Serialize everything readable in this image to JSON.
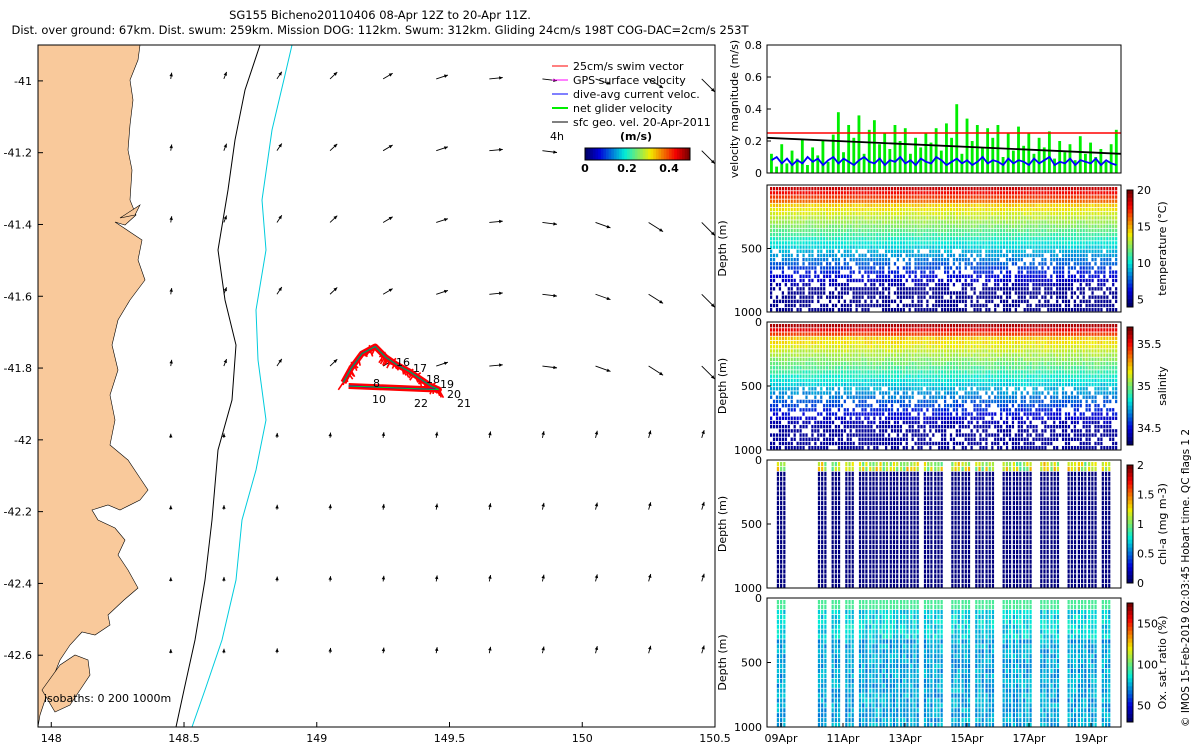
{
  "header": {
    "line1": "SG155 Bicheno20110406 08-Apr 12Z to 20-Apr 11Z.",
    "line2": "Dist. over ground: 67km. Dist. swum: 259km. Mission DOG: 112km. Swum: 312km. Gliding 24cm/s 198T COG-DAC=2cm/s 253T"
  },
  "footer_text": "© IMOS 15-Feb-2019 02:03:45 Hobart time. QC flags 1  2",
  "colors": {
    "land": "#f9c99b",
    "isobath_200": "#000000",
    "isobath_1000": "#00ccdd",
    "swim_vector": "#ff0000",
    "gps_velocity": "#ff00ff",
    "dive_avg_current": "#0000ff",
    "net_glider_velocity": "#00ee00",
    "sfc_geo_vel": "#000000"
  },
  "chart_data": [
    {
      "id": "map",
      "type": "scatter",
      "title": "",
      "xlabel": "",
      "ylabel": "",
      "xlim": [
        147.95,
        150.5
      ],
      "ylim": [
        -42.8,
        -40.9
      ],
      "xticks": [
        148,
        148.5,
        149,
        149.5,
        150,
        150.5
      ],
      "xtick_labels": [
        "148",
        "148.5",
        "149",
        "149.5",
        "150",
        "150.5"
      ],
      "yticks": [
        -41,
        -41.2,
        -41.4,
        -41.6,
        -41.8,
        -42,
        -42.2,
        -42.4,
        -42.6
      ],
      "ytick_labels": [
        "-41",
        "-41.2",
        "-41.4",
        "-41.6",
        "-41.8",
        "-42",
        "-42.2",
        "-42.4",
        "-42.6"
      ],
      "legend": {
        "placement": "top-right",
        "entries": [
          {
            "label": "25cm/s swim vector",
            "color": "#ff0000"
          },
          {
            "label": "GPS surface velocity",
            "color": "#ff00ff"
          },
          {
            "label": "dive-avg current veloc.",
            "color": "#0000ff"
          },
          {
            "label": "net glider velocity",
            "color": "#00ee00"
          },
          {
            "label": "sfc geo. vel. 20-Apr-2011",
            "color": "#000000"
          }
        ]
      },
      "arrow_interval_label": "4h",
      "colorbar": {
        "label": "(m/s)",
        "ticks": [
          0,
          0.2,
          0.4
        ],
        "tick_labels": [
          "0",
          "0.2",
          "0.4"
        ],
        "range": [
          0,
          0.5
        ]
      },
      "isobaths_label": "isobaths: 0   200   1000m",
      "track_day_labels": [
        "16",
        "17",
        "18",
        "19",
        "20",
        "21",
        "22",
        "8",
        "10"
      ],
      "track_points": [
        {
          "x": 149.1,
          "y": -41.84
        },
        {
          "x": 149.13,
          "y": -41.8
        },
        {
          "x": 149.17,
          "y": -41.76
        },
        {
          "x": 149.22,
          "y": -41.74
        },
        {
          "x": 149.26,
          "y": -41.77
        },
        {
          "x": 149.3,
          "y": -41.79
        },
        {
          "x": 149.35,
          "y": -41.81
        },
        {
          "x": 149.39,
          "y": -41.83
        },
        {
          "x": 149.43,
          "y": -41.85
        },
        {
          "x": 149.46,
          "y": -41.86
        },
        {
          "x": 149.12,
          "y": -41.85
        }
      ]
    },
    {
      "id": "velocity",
      "type": "line",
      "title": "",
      "xlabel": "",
      "ylabel": "velocity magnitude (m/s)",
      "xlim": [
        0,
        12.5
      ],
      "ylim": [
        0,
        0.8
      ],
      "yticks": [
        0,
        0.2,
        0.4,
        0.6,
        0.8
      ],
      "ytick_labels": [
        "0",
        "0.2",
        "0.4",
        "0.6",
        "0.8"
      ],
      "swim_ref": 0.25,
      "series": [],
      "net_glider_velocity": [
        0.12,
        0.04,
        0.18,
        0.06,
        0.14,
        0.09,
        0.21,
        0.05,
        0.16,
        0.11,
        0.2,
        0.07,
        0.24,
        0.38,
        0.13,
        0.3,
        0.22,
        0.36,
        0.12,
        0.27,
        0.33,
        0.18,
        0.25,
        0.15,
        0.3,
        0.2,
        0.28,
        0.12,
        0.22,
        0.16,
        0.25,
        0.19,
        0.28,
        0.14,
        0.31,
        0.22,
        0.43,
        0.12,
        0.34,
        0.2,
        0.3,
        0.16,
        0.28,
        0.22,
        0.3,
        0.1,
        0.25,
        0.14,
        0.29,
        0.17,
        0.25,
        0.12,
        0.22,
        0.16,
        0.26,
        0.09,
        0.2,
        0.13,
        0.18,
        0.08,
        0.23,
        0.12,
        0.19,
        0.1,
        0.15,
        0.07,
        0.18,
        0.27
      ],
      "dive_avg_current": [
        0.08,
        0.1,
        0.06,
        0.09,
        0.05,
        0.08,
        0.06,
        0.1,
        0.07,
        0.09,
        0.05,
        0.08,
        0.1,
        0.06,
        0.09,
        0.07,
        0.05,
        0.08,
        0.1,
        0.07,
        0.06,
        0.09,
        0.05,
        0.08,
        0.07,
        0.1,
        0.06,
        0.08,
        0.05,
        0.09,
        0.07,
        0.06,
        0.1,
        0.08,
        0.05,
        0.07,
        0.09,
        0.06,
        0.08,
        0.05,
        0.07,
        0.1,
        0.06,
        0.08,
        0.07,
        0.05,
        0.09,
        0.06,
        0.08,
        0.07,
        0.05,
        0.09,
        0.06,
        0.08,
        0.1,
        0.05,
        0.07,
        0.06,
        0.09,
        0.05,
        0.08,
        0.07,
        0.06,
        0.09,
        0.05,
        0.08,
        0.06,
        0.05
      ],
      "sfc_geo_vel": {
        "start": 0.22,
        "end": 0.12
      }
    },
    {
      "id": "temperature",
      "type": "heatmap",
      "title": "",
      "xlabel": "",
      "ylabel": "Depth (m)",
      "ylim": [
        1000,
        0
      ],
      "yticks": [
        500,
        1000
      ],
      "ytick_labels": [
        "500",
        "1000"
      ],
      "colorbar": {
        "label": "temperature (°C)",
        "ticks": [
          5,
          10,
          15,
          20
        ],
        "tick_labels": [
          "5",
          "10",
          "15",
          "20"
        ],
        "range": [
          4,
          20
        ]
      }
    },
    {
      "id": "salinity",
      "type": "heatmap",
      "title": "",
      "xlabel": "",
      "ylabel": "Depth (m)",
      "ylim": [
        1000,
        0
      ],
      "yticks": [
        0,
        500,
        1000
      ],
      "ytick_labels": [
        "0",
        "500",
        "1000"
      ],
      "colorbar": {
        "label": "salinity",
        "ticks": [
          34.5,
          35,
          35.5
        ],
        "tick_labels": [
          "34.5",
          "35",
          "35.5"
        ],
        "range": [
          34.3,
          35.7
        ]
      }
    },
    {
      "id": "chla",
      "type": "heatmap",
      "title": "",
      "xlabel": "",
      "ylabel": "Depth (m)",
      "ylim": [
        1000,
        0
      ],
      "yticks": [
        0,
        500,
        1000
      ],
      "ytick_labels": [
        "0",
        "500",
        "1000"
      ],
      "colorbar": {
        "label": "chl-a (mg m-3)",
        "ticks": [
          0,
          0.5,
          1,
          1.5,
          2
        ],
        "tick_labels": [
          "0",
          "0.5",
          "1",
          "1.5",
          "2"
        ],
        "range": [
          0,
          2
        ]
      },
      "profile_positions": [
        0.02,
        0.14,
        0.18,
        0.22,
        0.26,
        0.29,
        0.32,
        0.35,
        0.38,
        0.41,
        0.45,
        0.48,
        0.53,
        0.56,
        0.6,
        0.63,
        0.68,
        0.71,
        0.74,
        0.79,
        0.82,
        0.87,
        0.9,
        0.93,
        0.97
      ]
    },
    {
      "id": "oxygen",
      "type": "heatmap",
      "title": "",
      "ylabel": "Depth (m)",
      "ylim": [
        1000,
        0
      ],
      "yticks": [
        0,
        500,
        1000
      ],
      "ytick_labels": [
        "0",
        "500",
        "1000"
      ],
      "colorbar": {
        "label": "Ox. sat. ratio (%)",
        "ticks": [
          50,
          100,
          150
        ],
        "tick_labels": [
          "50",
          "100",
          "150"
        ],
        "range": [
          30,
          175
        ]
      },
      "xlabel": "",
      "xtick_labels": [
        "09Apr",
        "11Apr",
        "13Apr",
        "15Apr",
        "17Apr",
        "19Apr"
      ]
    }
  ]
}
